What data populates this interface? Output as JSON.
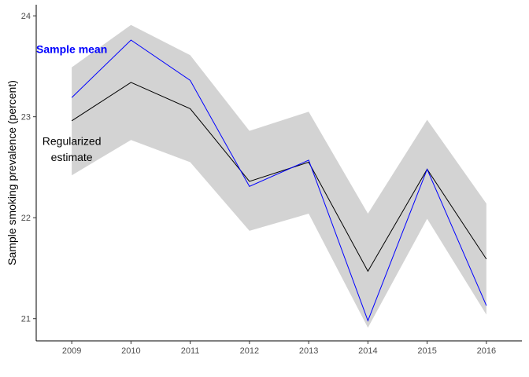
{
  "chart_data": {
    "type": "line",
    "title": "",
    "xlabel": "",
    "ylabel": "Sample smoking prevalence (percent)",
    "x": [
      2009,
      2010,
      2011,
      2012,
      2013,
      2014,
      2015,
      2016
    ],
    "x_ticks": [
      "2009",
      "2010",
      "2011",
      "2012",
      "2013",
      "2014",
      "2015",
      "2016"
    ],
    "y_ticks": [
      "21",
      "22",
      "23",
      "24"
    ],
    "xlim": [
      2008.4,
      2016.6
    ],
    "ylim": [
      20.78,
      24.11
    ],
    "grid": false,
    "legend": "none",
    "series": [
      {
        "name": "Sample mean",
        "color": "#0000ff",
        "values": [
          23.19,
          23.76,
          23.36,
          22.31,
          22.57,
          20.98,
          22.48,
          21.13
        ]
      },
      {
        "name": "",
        "color": "#000000",
        "values": [
          22.96,
          23.34,
          23.08,
          22.36,
          22.55,
          21.47,
          22.48,
          21.59
        ]
      }
    ],
    "band": {
      "color": "#d3d3d3",
      "lower": [
        22.42,
        22.77,
        22.55,
        21.87,
        22.04,
        20.91,
        21.99,
        21.04
      ],
      "upper": [
        23.49,
        23.91,
        23.61,
        22.86,
        23.05,
        22.04,
        22.97,
        22.14
      ]
    },
    "annotations": [
      {
        "text": "Sample mean",
        "color": "#0000ff",
        "x": 2009,
        "y": 23.67,
        "bold": true
      },
      {
        "text": "Regularized",
        "color": "#000000",
        "x": 2009,
        "y": 22.76,
        "bold": false
      },
      {
        "text": "estimate",
        "color": "#000000",
        "x": 2009,
        "y": 22.6,
        "bold": false
      }
    ]
  }
}
